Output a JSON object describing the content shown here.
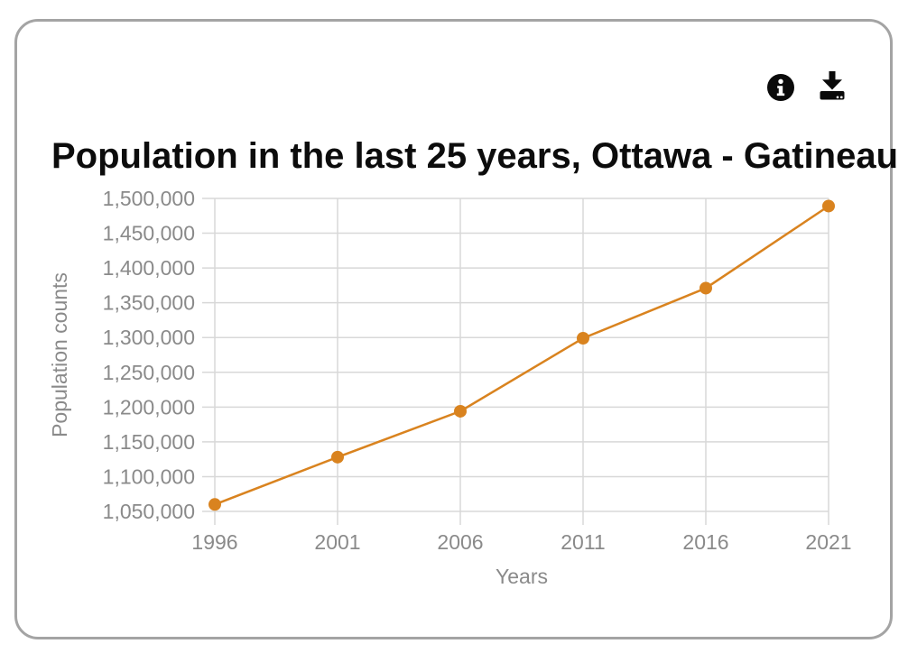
{
  "card": {
    "border_color": "#a4a4a4",
    "background": "#ffffff"
  },
  "toolbar": {
    "buttons": [
      {
        "icon": "info-icon"
      },
      {
        "icon": "download-icon"
      }
    ],
    "icon_color": "#0a0a0a"
  },
  "chart_data": {
    "type": "line",
    "title": "Population in the last 25 years, Ottawa - Gatineau",
    "xlabel": "Years",
    "ylabel": "Population counts",
    "categories": [
      "1996",
      "2001",
      "2006",
      "2011",
      "2016",
      "2021"
    ],
    "values": [
      1060000,
      1128000,
      1194000,
      1299000,
      1371000,
      1489000
    ],
    "ylim": [
      1050000,
      1500000
    ],
    "ytick_step": 50000,
    "grid": true,
    "legend": "none",
    "marker": "circle"
  },
  "colors": {
    "series": "#d9831f",
    "gridline": "#d8d8d8",
    "axis_text": "#8a8a8a",
    "title_text": "#0c0c0c"
  }
}
